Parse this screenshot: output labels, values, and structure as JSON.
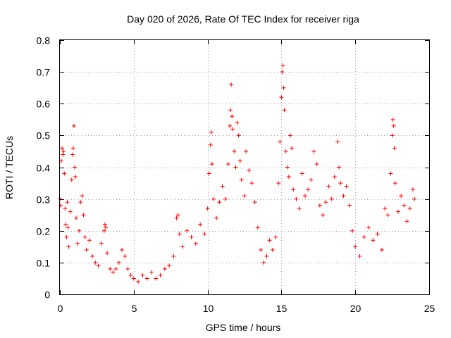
{
  "chart_data": {
    "type": "scatter",
    "title": "Day 020 of 2026, Rate Of TEC Index for receiver riga",
    "xlabel": "GPS time / hours",
    "ylabel": "ROTI / TECUs",
    "xlim": [
      0,
      25
    ],
    "ylim": [
      0,
      0.8
    ],
    "x_ticks": [
      0,
      5,
      10,
      15,
      20,
      25
    ],
    "y_ticks": [
      0,
      0.1,
      0.2,
      0.3,
      0.4,
      0.5,
      0.6,
      0.7,
      0.8
    ],
    "x_tick_labels": [
      "0",
      "5",
      "10",
      "15",
      "20",
      "25"
    ],
    "y_tick_labels": [
      "0",
      "0.1",
      "0.2",
      "0.3",
      "0.4",
      "0.5",
      "0.6",
      "0.7",
      "0.8"
    ],
    "grid": true,
    "marker": "plus",
    "color": "#ff0000",
    "series": [
      {
        "name": "ROTI",
        "points": [
          [
            0.0,
            0.3
          ],
          [
            0.05,
            0.28
          ],
          [
            0.1,
            0.42
          ],
          [
            0.15,
            0.46
          ],
          [
            0.2,
            0.44
          ],
          [
            0.25,
            0.45
          ],
          [
            0.3,
            0.38
          ],
          [
            0.35,
            0.27
          ],
          [
            0.4,
            0.22
          ],
          [
            0.45,
            0.18
          ],
          [
            0.5,
            0.29
          ],
          [
            0.55,
            0.21
          ],
          [
            0.6,
            0.15
          ],
          [
            0.7,
            0.26
          ],
          [
            0.8,
            0.36
          ],
          [
            0.85,
            0.44
          ],
          [
            0.9,
            0.46
          ],
          [
            0.95,
            0.53
          ],
          [
            1.0,
            0.4
          ],
          [
            1.05,
            0.37
          ],
          [
            1.1,
            0.24
          ],
          [
            1.2,
            0.16
          ],
          [
            1.3,
            0.2
          ],
          [
            1.4,
            0.29
          ],
          [
            1.5,
            0.31
          ],
          [
            1.6,
            0.25
          ],
          [
            1.7,
            0.18
          ],
          [
            1.8,
            0.14
          ],
          [
            2.0,
            0.17
          ],
          [
            2.2,
            0.12
          ],
          [
            2.4,
            0.1
          ],
          [
            2.6,
            0.09
          ],
          [
            2.8,
            0.16
          ],
          [
            3.0,
            0.2
          ],
          [
            3.05,
            0.22
          ],
          [
            3.1,
            0.21
          ],
          [
            3.2,
            0.13
          ],
          [
            3.4,
            0.08
          ],
          [
            3.6,
            0.07
          ],
          [
            3.8,
            0.08
          ],
          [
            4.0,
            0.1
          ],
          [
            4.2,
            0.14
          ],
          [
            4.4,
            0.12
          ],
          [
            4.6,
            0.08
          ],
          [
            4.8,
            0.06
          ],
          [
            5.0,
            0.05
          ],
          [
            5.3,
            0.04
          ],
          [
            5.6,
            0.06
          ],
          [
            5.9,
            0.05
          ],
          [
            6.2,
            0.07
          ],
          [
            6.5,
            0.05
          ],
          [
            6.8,
            0.06
          ],
          [
            7.1,
            0.08
          ],
          [
            7.4,
            0.09
          ],
          [
            7.7,
            0.12
          ],
          [
            7.9,
            0.24
          ],
          [
            8.0,
            0.25
          ],
          [
            8.1,
            0.19
          ],
          [
            8.3,
            0.15
          ],
          [
            8.6,
            0.2
          ],
          [
            8.9,
            0.18
          ],
          [
            9.2,
            0.16
          ],
          [
            9.5,
            0.22
          ],
          [
            9.8,
            0.19
          ],
          [
            10.0,
            0.27
          ],
          [
            10.1,
            0.38
          ],
          [
            10.2,
            0.47
          ],
          [
            10.25,
            0.51
          ],
          [
            10.3,
            0.41
          ],
          [
            10.4,
            0.3
          ],
          [
            10.6,
            0.24
          ],
          [
            10.8,
            0.29
          ],
          [
            11.0,
            0.34
          ],
          [
            11.2,
            0.3
          ],
          [
            11.4,
            0.41
          ],
          [
            11.5,
            0.53
          ],
          [
            11.55,
            0.58
          ],
          [
            11.6,
            0.66
          ],
          [
            11.65,
            0.56
          ],
          [
            11.7,
            0.52
          ],
          [
            11.8,
            0.45
          ],
          [
            11.9,
            0.4
          ],
          [
            12.0,
            0.54
          ],
          [
            12.1,
            0.5
          ],
          [
            12.2,
            0.42
          ],
          [
            12.3,
            0.36
          ],
          [
            12.5,
            0.31
          ],
          [
            12.6,
            0.45
          ],
          [
            12.8,
            0.39
          ],
          [
            13.0,
            0.35
          ],
          [
            13.2,
            0.29
          ],
          [
            13.4,
            0.21
          ],
          [
            13.6,
            0.14
          ],
          [
            13.8,
            0.1
          ],
          [
            14.0,
            0.12
          ],
          [
            14.2,
            0.17
          ],
          [
            14.4,
            0.14
          ],
          [
            14.6,
            0.18
          ],
          [
            14.8,
            0.35
          ],
          [
            14.9,
            0.48
          ],
          [
            15.0,
            0.62
          ],
          [
            15.05,
            0.7
          ],
          [
            15.1,
            0.72
          ],
          [
            15.15,
            0.65
          ],
          [
            15.2,
            0.58
          ],
          [
            15.3,
            0.45
          ],
          [
            15.4,
            0.4
          ],
          [
            15.5,
            0.37
          ],
          [
            15.6,
            0.5
          ],
          [
            15.7,
            0.46
          ],
          [
            15.8,
            0.33
          ],
          [
            16.0,
            0.3
          ],
          [
            16.2,
            0.27
          ],
          [
            16.4,
            0.38
          ],
          [
            16.6,
            0.31
          ],
          [
            16.8,
            0.33
          ],
          [
            17.0,
            0.36
          ],
          [
            17.2,
            0.45
          ],
          [
            17.4,
            0.41
          ],
          [
            17.6,
            0.28
          ],
          [
            17.8,
            0.25
          ],
          [
            18.0,
            0.29
          ],
          [
            18.2,
            0.34
          ],
          [
            18.4,
            0.3
          ],
          [
            18.6,
            0.37
          ],
          [
            18.8,
            0.48
          ],
          [
            18.9,
            0.4
          ],
          [
            19.0,
            0.35
          ],
          [
            19.2,
            0.31
          ],
          [
            19.4,
            0.34
          ],
          [
            19.6,
            0.28
          ],
          [
            19.8,
            0.2
          ],
          [
            20.0,
            0.15
          ],
          [
            20.3,
            0.12
          ],
          [
            20.6,
            0.18
          ],
          [
            20.9,
            0.21
          ],
          [
            21.2,
            0.17
          ],
          [
            21.5,
            0.19
          ],
          [
            21.8,
            0.14
          ],
          [
            22.0,
            0.27
          ],
          [
            22.2,
            0.25
          ],
          [
            22.4,
            0.38
          ],
          [
            22.5,
            0.5
          ],
          [
            22.55,
            0.55
          ],
          [
            22.6,
            0.53
          ],
          [
            22.65,
            0.46
          ],
          [
            22.7,
            0.35
          ],
          [
            22.9,
            0.26
          ],
          [
            23.1,
            0.31
          ],
          [
            23.3,
            0.28
          ],
          [
            23.5,
            0.23
          ],
          [
            23.7,
            0.27
          ],
          [
            23.9,
            0.33
          ],
          [
            24.0,
            0.3
          ]
        ]
      }
    ]
  }
}
